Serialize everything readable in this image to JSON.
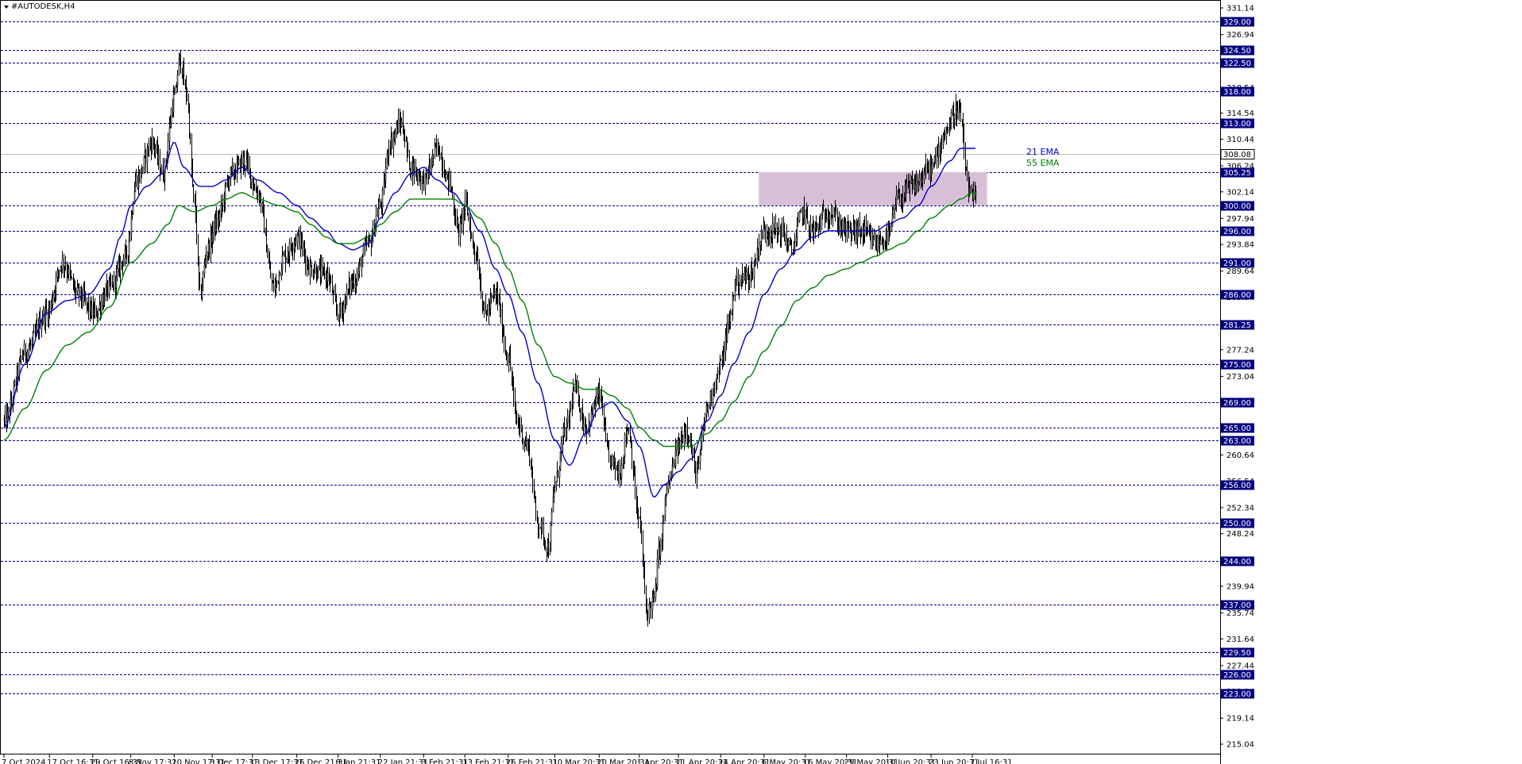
{
  "window": {
    "title": "#AUTODESK,H4",
    "menu_icon": "triangle-down-icon"
  },
  "colors": {
    "ema21": "#0000c8",
    "ema55": "#008000",
    "level_line": "#000080",
    "level_label_bg": "#000080",
    "zone_fill": "#d8bfd8",
    "candle": "#000000",
    "price_line": "#c0c0c0"
  },
  "chart_data": {
    "type": "line",
    "symbol": "#AUTODESK",
    "timeframe": "H4",
    "ylim": [
      215.04,
      331.14
    ],
    "y_ticks": [
      "331.14",
      "326.94",
      "322.74",
      "318.54",
      "314.54",
      "310.44",
      "306.24",
      "302.14",
      "297.94",
      "293.84",
      "289.64",
      "285.54",
      "281.44",
      "277.24",
      "273.04",
      "268.94",
      "264.84",
      "260.64",
      "256.54",
      "252.34",
      "248.24",
      "244.14",
      "239.94",
      "235.74",
      "231.64",
      "227.44",
      "223.34",
      "219.14",
      "215.04"
    ],
    "x_tick_labels": [
      "7 Oct 2024",
      "17 Oct 16:31",
      "29 Oct 16:31",
      "8 Nov 17:31",
      "20 Nov 17:31",
      "3 Dec 17:31",
      "13 Dec 17:31",
      "26 Dec 21:31",
      "8 Jan 21:31",
      "22 Jan 21:31",
      "3 Feb 21:31",
      "13 Feb 21:31",
      "26 Feb 21:31",
      "10 Mar 20:31",
      "20 Mar 20:31",
      "1 Apr 20:31",
      "11 Apr 20:31",
      "24 Apr 20:31",
      "6 May 20:31",
      "16 May 20:31",
      "29 May 20:31",
      "10 Jun 20:31",
      "23 Jun 20:31",
      "7 Jul 16:31"
    ],
    "x_tick_index": [
      0,
      43,
      84,
      120,
      161,
      197,
      235,
      277,
      316,
      356,
      397,
      436,
      477,
      521,
      563,
      601,
      638,
      678,
      719,
      758,
      797,
      836,
      877,
      916
    ],
    "levels": [
      329.0,
      324.5,
      322.5,
      318.0,
      313.0,
      305.25,
      300.0,
      296.0,
      291.0,
      286.0,
      281.25,
      275.0,
      269.0,
      265.0,
      263.0,
      256.0,
      250.0,
      244.0,
      237.0,
      229.5,
      226.0,
      223.0
    ],
    "level_labels": [
      "329.00",
      "324.50",
      "322.50",
      "318.00",
      "313.00",
      "305.25",
      "300.00",
      "296.00",
      "291.00",
      "286.00",
      "281.25",
      "275.00",
      "269.00",
      "265.00",
      "263.00",
      "256.00",
      "250.00",
      "244.00",
      "237.00",
      "229.50",
      "226.00",
      "223.00"
    ],
    "current_price": 308.08,
    "current_price_label": "308.08",
    "zone": {
      "x_start": 714,
      "x_end": 930,
      "y_low": 300.0,
      "y_high": 305.25
    },
    "series": [
      {
        "name": "21 EMA",
        "color": "#0000c8",
        "anchors": [
          [
            0,
            265
          ],
          [
            20,
            275
          ],
          [
            40,
            283
          ],
          [
            60,
            285
          ],
          [
            80,
            286
          ],
          [
            100,
            290
          ],
          [
            110,
            295
          ],
          [
            120,
            300
          ],
          [
            135,
            303
          ],
          [
            150,
            305
          ],
          [
            161,
            310
          ],
          [
            170,
            306
          ],
          [
            185,
            303
          ],
          [
            197,
            303
          ],
          [
            210,
            304
          ],
          [
            225,
            306
          ],
          [
            240,
            304
          ],
          [
            260,
            302
          ],
          [
            277,
            300
          ],
          [
            290,
            298
          ],
          [
            305,
            296
          ],
          [
            316,
            294
          ],
          [
            330,
            293
          ],
          [
            345,
            294
          ],
          [
            356,
            298
          ],
          [
            370,
            302
          ],
          [
            385,
            305
          ],
          [
            397,
            306
          ],
          [
            410,
            304
          ],
          [
            425,
            302
          ],
          [
            436,
            300
          ],
          [
            450,
            296
          ],
          [
            465,
            290
          ],
          [
            477,
            286
          ],
          [
            490,
            280
          ],
          [
            505,
            272
          ],
          [
            521,
            263
          ],
          [
            535,
            259
          ],
          [
            550,
            264
          ],
          [
            563,
            268
          ],
          [
            575,
            269
          ],
          [
            590,
            266
          ],
          [
            601,
            262
          ],
          [
            615,
            254
          ],
          [
            625,
            256
          ],
          [
            638,
            258
          ],
          [
            650,
            260
          ],
          [
            665,
            266
          ],
          [
            678,
            270
          ],
          [
            690,
            275
          ],
          [
            705,
            280
          ],
          [
            719,
            286
          ],
          [
            735,
            290
          ],
          [
            750,
            293
          ],
          [
            765,
            295
          ],
          [
            780,
            296
          ],
          [
            797,
            296
          ],
          [
            810,
            296
          ],
          [
            825,
            296
          ],
          [
            836,
            297
          ],
          [
            850,
            298
          ],
          [
            865,
            300
          ],
          [
            877,
            303
          ],
          [
            895,
            307
          ],
          [
            905,
            309
          ],
          [
            916,
            309
          ]
        ]
      },
      {
        "name": "55 EMA",
        "color": "#008000",
        "anchors": [
          [
            0,
            263
          ],
          [
            20,
            268
          ],
          [
            40,
            274
          ],
          [
            60,
            278
          ],
          [
            80,
            280
          ],
          [
            100,
            284
          ],
          [
            120,
            291
          ],
          [
            140,
            294
          ],
          [
            155,
            297
          ],
          [
            165,
            300
          ],
          [
            180,
            299
          ],
          [
            197,
            300
          ],
          [
            210,
            301
          ],
          [
            225,
            302
          ],
          [
            240,
            301
          ],
          [
            260,
            300
          ],
          [
            277,
            299
          ],
          [
            290,
            297
          ],
          [
            305,
            295
          ],
          [
            316,
            294
          ],
          [
            330,
            294
          ],
          [
            345,
            295
          ],
          [
            356,
            297
          ],
          [
            370,
            299
          ],
          [
            385,
            301
          ],
          [
            397,
            301
          ],
          [
            410,
            301
          ],
          [
            425,
            301
          ],
          [
            436,
            300
          ],
          [
            450,
            298
          ],
          [
            465,
            294
          ],
          [
            477,
            290
          ],
          [
            490,
            285
          ],
          [
            505,
            278
          ],
          [
            521,
            273
          ],
          [
            535,
            272
          ],
          [
            550,
            271
          ],
          [
            563,
            271
          ],
          [
            575,
            270
          ],
          [
            590,
            268
          ],
          [
            601,
            265
          ],
          [
            615,
            263
          ],
          [
            625,
            262
          ],
          [
            638,
            262
          ],
          [
            650,
            262
          ],
          [
            665,
            264
          ],
          [
            678,
            266
          ],
          [
            690,
            269
          ],
          [
            705,
            273
          ],
          [
            719,
            277
          ],
          [
            735,
            281
          ],
          [
            750,
            285
          ],
          [
            765,
            287
          ],
          [
            780,
            289
          ],
          [
            797,
            290
          ],
          [
            810,
            291
          ],
          [
            825,
            292
          ],
          [
            836,
            293
          ],
          [
            850,
            294
          ],
          [
            865,
            296
          ],
          [
            877,
            298
          ],
          [
            895,
            300
          ],
          [
            905,
            301
          ],
          [
            916,
            302
          ]
        ]
      }
    ],
    "legend": [
      {
        "label": "21 EMA",
        "color": "#0000c8"
      },
      {
        "label": "55 EMA",
        "color": "#008000"
      }
    ],
    "candles": {
      "count": 920,
      "path": [
        [
          0,
          266
        ],
        [
          20,
          277
        ],
        [
          40,
          283
        ],
        [
          55,
          291
        ],
        [
          70,
          286
        ],
        [
          85,
          283
        ],
        [
          100,
          287
        ],
        [
          115,
          292
        ],
        [
          125,
          304
        ],
        [
          140,
          310
        ],
        [
          150,
          305
        ],
        [
          161,
          317
        ],
        [
          166,
          323
        ],
        [
          172,
          318
        ],
        [
          180,
          300
        ],
        [
          185,
          286
        ],
        [
          192,
          293
        ],
        [
          200,
          297
        ],
        [
          215,
          305
        ],
        [
          227,
          307
        ],
        [
          240,
          302
        ],
        [
          255,
          287
        ],
        [
          265,
          292
        ],
        [
          277,
          295
        ],
        [
          290,
          290
        ],
        [
          305,
          289
        ],
        [
          316,
          283
        ],
        [
          330,
          288
        ],
        [
          345,
          294
        ],
        [
          356,
          300
        ],
        [
          365,
          310
        ],
        [
          375,
          313
        ],
        [
          385,
          306
        ],
        [
          397,
          304
        ],
        [
          410,
          309
        ],
        [
          420,
          304
        ],
        [
          430,
          296
        ],
        [
          436,
          300
        ],
        [
          445,
          293
        ],
        [
          455,
          283
        ],
        [
          465,
          286
        ],
        [
          477,
          276
        ],
        [
          485,
          266
        ],
        [
          495,
          262
        ],
        [
          505,
          250
        ],
        [
          515,
          246
        ],
        [
          521,
          256
        ],
        [
          530,
          264
        ],
        [
          540,
          271
        ],
        [
          550,
          265
        ],
        [
          563,
          270
        ],
        [
          572,
          260
        ],
        [
          582,
          258
        ],
        [
          590,
          265
        ],
        [
          601,
          250
        ],
        [
          608,
          236
        ],
        [
          615,
          238
        ],
        [
          620,
          246
        ],
        [
          628,
          256
        ],
        [
          638,
          262
        ],
        [
          645,
          265
        ],
        [
          655,
          258
        ],
        [
          665,
          268
        ],
        [
          672,
          272
        ],
        [
          678,
          275
        ],
        [
          685,
          281
        ],
        [
          692,
          288
        ],
        [
          705,
          289
        ],
        [
          719,
          296
        ],
        [
          735,
          296
        ],
        [
          745,
          293
        ],
        [
          755,
          299
        ],
        [
          765,
          296
        ],
        [
          780,
          299
        ],
        [
          797,
          296
        ],
        [
          810,
          296
        ],
        [
          825,
          294
        ],
        [
          836,
          295
        ],
        [
          845,
          301
        ],
        [
          860,
          303
        ],
        [
          877,
          306
        ],
        [
          892,
          312
        ],
        [
          900,
          315
        ],
        [
          905,
          314
        ],
        [
          909,
          306
        ],
        [
          913,
          302
        ],
        [
          916,
          301
        ]
      ]
    }
  }
}
